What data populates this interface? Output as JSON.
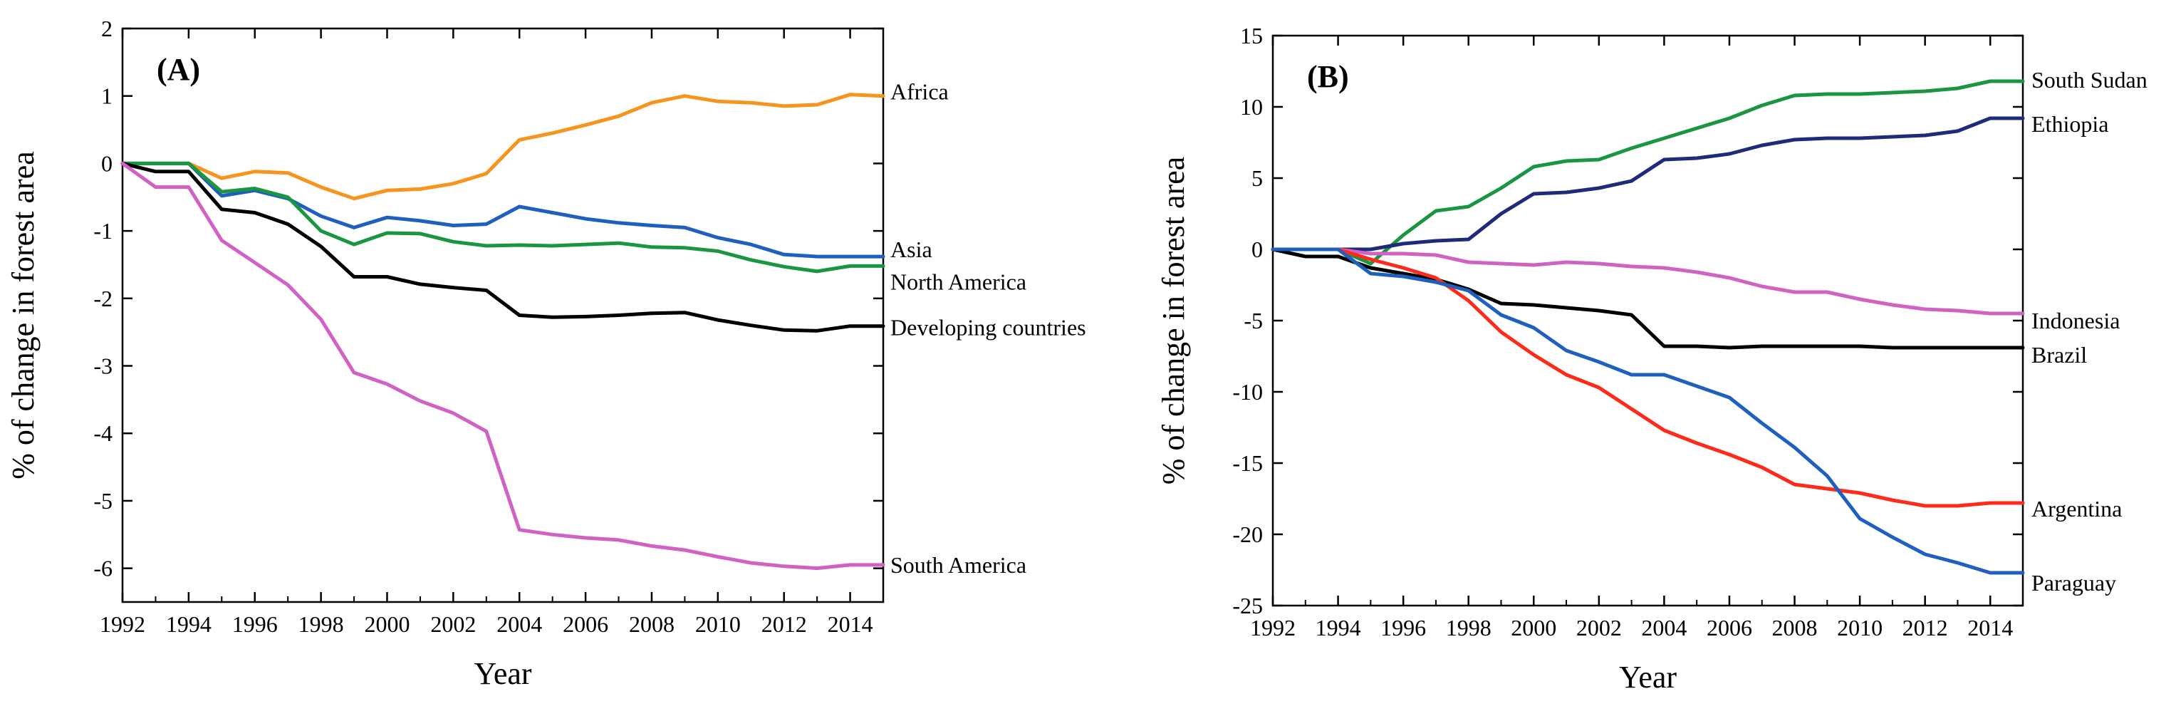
{
  "chart_data": [
    {
      "type": "line",
      "panel_label": "(A)",
      "xlabel": "Year",
      "ylabel": "% of change in forest area",
      "xlim": [
        1992,
        2015
      ],
      "ylim": [
        -6.5,
        2
      ],
      "xticks": [
        1992,
        1994,
        1996,
        1998,
        2000,
        2002,
        2004,
        2006,
        2008,
        2010,
        2012,
        2014
      ],
      "yticks": [
        2,
        1,
        0,
        -1,
        -2,
        -3,
        -4,
        -5,
        -6
      ],
      "x": [
        1992,
        1993,
        1994,
        1995,
        1996,
        1997,
        1998,
        1999,
        2000,
        2001,
        2002,
        2003,
        2004,
        2005,
        2006,
        2007,
        2008,
        2009,
        2010,
        2011,
        2012,
        2013,
        2014,
        2015
      ],
      "series": [
        {
          "name": "Africa",
          "color": "#f7941d",
          "values": [
            0,
            0,
            0,
            -0.22,
            -0.12,
            -0.14,
            -0.35,
            -0.52,
            -0.4,
            -0.38,
            -0.3,
            -0.15,
            0.35,
            0.45,
            0.57,
            0.7,
            0.9,
            1.0,
            0.92,
            0.9,
            0.85,
            0.87,
            1.02,
            1.0
          ]
        },
        {
          "name": "Asia",
          "color": "#1f5fbf",
          "values": [
            0,
            0,
            0,
            -0.48,
            -0.4,
            -0.52,
            -0.78,
            -0.95,
            -0.8,
            -0.85,
            -0.92,
            -0.9,
            -0.64,
            -0.73,
            -0.82,
            -0.88,
            -0.92,
            -0.95,
            -1.1,
            -1.2,
            -1.35,
            -1.38,
            -1.38,
            -1.38
          ]
        },
        {
          "name": "North America",
          "color": "#1a9641",
          "values": [
            0,
            0,
            0,
            -0.42,
            -0.37,
            -0.5,
            -1.0,
            -1.2,
            -1.03,
            -1.04,
            -1.16,
            -1.22,
            -1.21,
            -1.22,
            -1.2,
            -1.18,
            -1.24,
            -1.25,
            -1.3,
            -1.43,
            -1.53,
            -1.6,
            -1.52,
            -1.52
          ]
        },
        {
          "name": "Developing countries",
          "color": "#000000",
          "values": [
            0,
            -0.12,
            -0.12,
            -0.68,
            -0.73,
            -0.9,
            -1.23,
            -1.68,
            -1.68,
            -1.79,
            -1.84,
            -1.88,
            -2.25,
            -2.28,
            -2.27,
            -2.25,
            -2.22,
            -2.21,
            -2.32,
            -2.4,
            -2.47,
            -2.48,
            -2.41,
            -2.41
          ]
        },
        {
          "name": "South America",
          "color": "#d062c4",
          "values": [
            0,
            -0.35,
            -0.35,
            -1.14,
            -1.47,
            -1.8,
            -2.31,
            -3.1,
            -3.27,
            -3.52,
            -3.7,
            -3.97,
            -5.43,
            -5.5,
            -5.55,
            -5.58,
            -5.67,
            -5.73,
            -5.83,
            -5.92,
            -5.97,
            -6.0,
            -5.95,
            -5.95
          ]
        }
      ]
    },
    {
      "type": "line",
      "panel_label": "(B)",
      "xlabel": "Year",
      "ylabel": "% of change in forest area",
      "xlim": [
        1992,
        2015
      ],
      "ylim": [
        -25,
        15
      ],
      "xticks": [
        1992,
        1994,
        1996,
        1998,
        2000,
        2002,
        2004,
        2006,
        2008,
        2010,
        2012,
        2014
      ],
      "yticks": [
        15,
        10,
        5,
        0,
        -5,
        -10,
        -15,
        -20,
        -25
      ],
      "x": [
        1992,
        1993,
        1994,
        1995,
        1996,
        1997,
        1998,
        1999,
        2000,
        2001,
        2002,
        2003,
        2004,
        2005,
        2006,
        2007,
        2008,
        2009,
        2010,
        2011,
        2012,
        2013,
        2014,
        2015
      ],
      "series": [
        {
          "name": "South Sudan",
          "color": "#1a9641",
          "values": [
            0,
            0,
            0,
            -1.0,
            1.0,
            2.7,
            3.0,
            4.3,
            5.8,
            6.2,
            6.3,
            7.1,
            7.8,
            8.5,
            9.2,
            10.1,
            10.8,
            10.9,
            10.9,
            11.0,
            11.1,
            11.3,
            11.8,
            11.8
          ]
        },
        {
          "name": "Ethiopia",
          "color": "#1f2a7a",
          "values": [
            0,
            0,
            0,
            0,
            0.4,
            0.6,
            0.7,
            2.5,
            3.9,
            4.0,
            4.3,
            4.8,
            6.3,
            6.4,
            6.7,
            7.3,
            7.7,
            7.8,
            7.8,
            7.9,
            8.0,
            8.3,
            9.2,
            9.2
          ]
        },
        {
          "name": "Indonesia",
          "color": "#d062c4",
          "values": [
            0,
            0,
            0,
            -0.3,
            -0.3,
            -0.4,
            -0.9,
            -1.0,
            -1.1,
            -0.9,
            -1.0,
            -1.2,
            -1.3,
            -1.6,
            -2.0,
            -2.6,
            -3.0,
            -3.0,
            -3.5,
            -3.9,
            -4.2,
            -4.3,
            -4.5,
            -4.5
          ]
        },
        {
          "name": "Brazil",
          "color": "#000000",
          "values": [
            0,
            -0.5,
            -0.5,
            -1.3,
            -1.7,
            -2.1,
            -2.8,
            -3.8,
            -3.9,
            -4.1,
            -4.3,
            -4.6,
            -6.8,
            -6.8,
            -6.9,
            -6.8,
            -6.8,
            -6.8,
            -6.8,
            -6.9,
            -6.9,
            -6.9,
            -6.9,
            -6.9
          ]
        },
        {
          "name": "Argentina",
          "color": "#ff2a1a",
          "values": [
            0,
            0,
            0,
            -0.7,
            -1.3,
            -2.0,
            -3.6,
            -5.8,
            -7.4,
            -8.8,
            -9.7,
            -11.2,
            -12.7,
            -13.6,
            -14.4,
            -15.3,
            -16.5,
            -16.8,
            -17.1,
            -17.6,
            -18.0,
            -18.0,
            -17.8,
            -17.8
          ]
        },
        {
          "name": "Paraguay",
          "color": "#1f5fbf",
          "values": [
            0,
            0,
            0,
            -1.7,
            -1.9,
            -2.3,
            -2.9,
            -4.6,
            -5.5,
            -7.1,
            -7.9,
            -8.8,
            -8.8,
            -9.6,
            -10.4,
            -12.2,
            -13.9,
            -15.9,
            -18.9,
            -20.2,
            -21.4,
            -22.0,
            -22.7,
            -22.7
          ]
        }
      ]
    }
  ]
}
